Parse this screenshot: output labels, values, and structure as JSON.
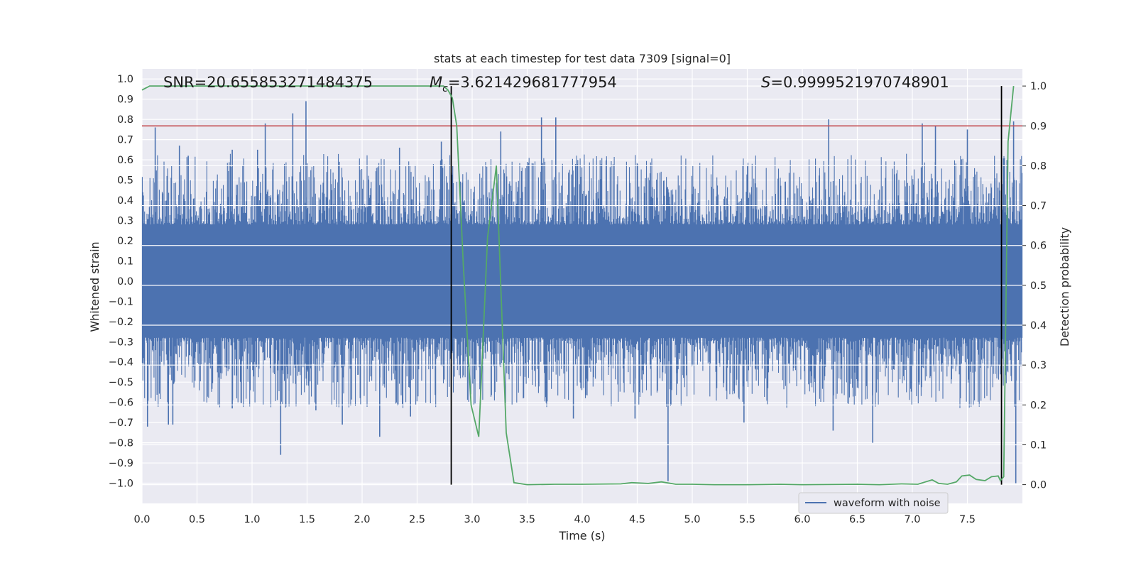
{
  "chart_data": {
    "type": "line",
    "title": "stats at each timestep for test data 7309 [signal=0]",
    "xlabel": "Time (s)",
    "ylabel": "Whitened strain",
    "y2label": "Detection probability",
    "xlim": [
      0,
      8
    ],
    "ylim": [
      -1.1,
      1.05
    ],
    "y2lim": [
      -0.047,
      1.043
    ],
    "x_ticks": [
      0.0,
      0.5,
      1.0,
      1.5,
      2.0,
      2.5,
      3.0,
      3.5,
      4.0,
      4.5,
      5.0,
      5.5,
      6.0,
      6.5,
      7.0,
      7.5
    ],
    "y_ticks": [
      1.0,
      0.9,
      0.8,
      0.7,
      0.6,
      0.5,
      0.4,
      0.3,
      0.2,
      0.1,
      0.0,
      -0.1,
      -0.2,
      -0.3,
      -0.4,
      -0.5,
      -0.6,
      -0.7,
      -0.8,
      -0.9,
      -1.0
    ],
    "y2_ticks": [
      1.0,
      0.9,
      0.8,
      0.7,
      0.6,
      0.5,
      0.4,
      0.3,
      0.2,
      0.1,
      0.0
    ],
    "grid": true,
    "legend_placement": "lower-right",
    "annotations": {
      "snr": "SNR=20.655853271484375",
      "mc_symbol": "M",
      "mc_sub": "c",
      "mc_value": "=3.621429681777954",
      "s_symbol": "S",
      "s_value": "=0.9999521970748901"
    },
    "threshold_line": {
      "axis": "right",
      "y": 0.9,
      "color": "#c44e52"
    },
    "vertical_markers": [
      {
        "x": 2.81,
        "y2_from": 0.0,
        "y2_to": 1.0,
        "color": "#000000"
      },
      {
        "x": 7.81,
        "y2_from": 0.0,
        "y2_to": 1.0,
        "color": "#000000"
      }
    ],
    "series": [
      {
        "name": "waveform with noise",
        "color": "#4c72b0",
        "axis": "left",
        "kind": "noise-envelope",
        "core_band": [
          -0.2,
          0.25
        ],
        "typical_peak": [
          0.45,
          0.55
        ],
        "typical_trough": [
          -0.45,
          -0.55
        ],
        "max": 0.89,
        "min": -1.0,
        "spikes": [
          {
            "x": 0.05,
            "y": -0.72
          },
          {
            "x": 0.12,
            "y": 0.76
          },
          {
            "x": 0.24,
            "y": -0.71
          },
          {
            "x": 0.28,
            "y": -0.71
          },
          {
            "x": 0.34,
            "y": 0.67
          },
          {
            "x": 0.42,
            "y": 0.62
          },
          {
            "x": 0.82,
            "y": -0.63
          },
          {
            "x": 0.82,
            "y": 0.65
          },
          {
            "x": 1.05,
            "y": 0.65
          },
          {
            "x": 1.12,
            "y": 0.78
          },
          {
            "x": 1.26,
            "y": -0.86
          },
          {
            "x": 1.37,
            "y": 0.83
          },
          {
            "x": 1.49,
            "y": 0.89
          },
          {
            "x": 1.58,
            "y": -0.64
          },
          {
            "x": 1.82,
            "y": -0.71
          },
          {
            "x": 2.16,
            "y": -0.77
          },
          {
            "x": 2.34,
            "y": 0.66
          },
          {
            "x": 2.44,
            "y": -0.67
          },
          {
            "x": 2.72,
            "y": 0.69
          },
          {
            "x": 3.26,
            "y": 0.74
          },
          {
            "x": 3.63,
            "y": 0.81
          },
          {
            "x": 3.76,
            "y": 0.81
          },
          {
            "x": 3.92,
            "y": -0.68
          },
          {
            "x": 4.48,
            "y": -0.68
          },
          {
            "x": 4.78,
            "y": -0.99
          },
          {
            "x": 5.47,
            "y": -0.7
          },
          {
            "x": 6.24,
            "y": 0.8
          },
          {
            "x": 6.28,
            "y": -0.74
          },
          {
            "x": 6.64,
            "y": -0.8
          },
          {
            "x": 7.09,
            "y": 0.78
          },
          {
            "x": 7.21,
            "y": 0.77
          },
          {
            "x": 7.5,
            "y": 0.75
          },
          {
            "x": 7.92,
            "y": 0.79
          },
          {
            "x": 7.94,
            "y": -1.0
          }
        ]
      },
      {
        "name": "",
        "color": "#55a868",
        "axis": "right",
        "x": [
          0.0,
          0.07,
          0.5,
          1.0,
          1.5,
          2.0,
          2.5,
          2.74,
          2.78,
          2.82,
          2.86,
          2.92,
          2.99,
          3.06,
          3.14,
          3.22,
          3.26,
          3.31,
          3.38,
          3.5,
          3.75,
          4.0,
          4.35,
          4.45,
          4.6,
          4.72,
          4.85,
          5.0,
          5.2,
          5.5,
          5.8,
          6.0,
          6.5,
          6.7,
          6.9,
          7.05,
          7.12,
          7.18,
          7.24,
          7.32,
          7.4,
          7.45,
          7.52,
          7.58,
          7.66,
          7.72,
          7.78,
          7.8,
          7.83,
          7.87,
          7.92
        ],
        "y": [
          0.99,
          1.0,
          1.0,
          1.0,
          1.0,
          1.0,
          1.0,
          1.0,
          0.99,
          0.97,
          0.9,
          0.55,
          0.2,
          0.12,
          0.62,
          0.8,
          0.5,
          0.13,
          0.005,
          0.0,
          0.001,
          0.001,
          0.002,
          0.005,
          0.003,
          0.007,
          0.001,
          0.001,
          0.0,
          0.0,
          0.001,
          0.0,
          0.001,
          0.0,
          0.002,
          0.001,
          0.007,
          0.012,
          0.003,
          0.001,
          0.007,
          0.022,
          0.024,
          0.013,
          0.01,
          0.02,
          0.022,
          0.01,
          0.02,
          0.86,
          1.0
        ]
      }
    ]
  }
}
